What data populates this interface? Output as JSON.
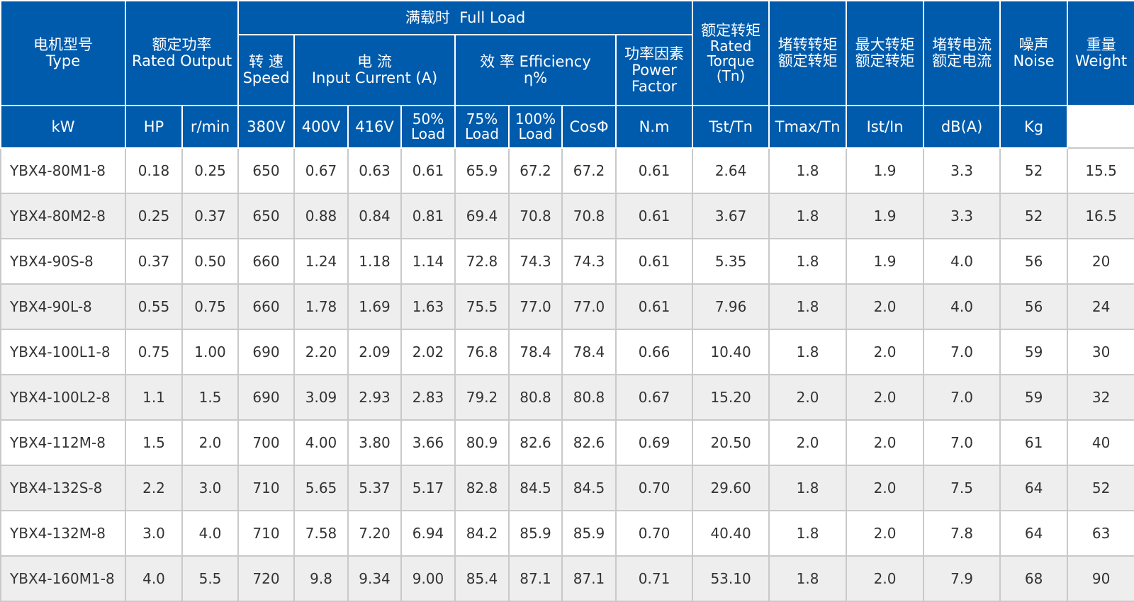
{
  "header": {
    "type": [
      "电机型号",
      "Type"
    ],
    "rated_output": [
      "额定功率",
      "Rated Output"
    ],
    "full_load": "满载时  Full Load",
    "speed": [
      "转 速",
      "Speed"
    ],
    "current": [
      "电 流",
      "Input Current (A)"
    ],
    "efficiency": [
      "效 率 Efficiency",
      "η%"
    ],
    "power_factor": [
      "功率因素",
      "Power",
      "Factor"
    ],
    "rated_torque": [
      "额定转矩",
      "Rated",
      "Torque",
      "(Tn)"
    ],
    "locked_torque": [
      "堵转转矩",
      "额定转矩"
    ],
    "max_torque": [
      "最大转矩",
      "额定转矩"
    ],
    "locked_current": [
      "堵转电流",
      "额定电流"
    ],
    "noise": [
      "噪声",
      "Noise"
    ],
    "weight": [
      "重量",
      "Weight"
    ],
    "units": {
      "kw": "kW",
      "hp": "HP",
      "rmin": "r/min",
      "v380": "380V",
      "v400": "400V",
      "v416": "416V",
      "load50": [
        "50%",
        "Load"
      ],
      "load75": [
        "75%",
        "Load"
      ],
      "load100": [
        "100%",
        "Load"
      ],
      "cos": "CosΦ",
      "nm": "N.m",
      "tst": "Tst/Tn",
      "tmax": "Tmax/Tn",
      "ist": "Ist/In",
      "db": "dB(A)",
      "kg": "Kg"
    }
  },
  "rows": [
    [
      "YBX4-80M1-8",
      "0.18",
      "0.25",
      "650",
      "0.67",
      "0.63",
      "0.61",
      "65.9",
      "67.2",
      "67.2",
      "0.61",
      "2.64",
      "1.8",
      "1.9",
      "3.3",
      "52",
      "15.5"
    ],
    [
      "YBX4-80M2-8",
      "0.25",
      "0.37",
      "650",
      "0.88",
      "0.84",
      "0.81",
      "69.4",
      "70.8",
      "70.8",
      "0.61",
      "3.67",
      "1.8",
      "1.9",
      "3.3",
      "52",
      "16.5"
    ],
    [
      "YBX4-90S-8",
      "0.37",
      "0.50",
      "660",
      "1.24",
      "1.18",
      "1.14",
      "72.8",
      "74.3",
      "74.3",
      "0.61",
      "5.35",
      "1.8",
      "1.9",
      "4.0",
      "56",
      "20"
    ],
    [
      "YBX4-90L-8",
      "0.55",
      "0.75",
      "660",
      "1.78",
      "1.69",
      "1.63",
      "75.5",
      "77.0",
      "77.0",
      "0.61",
      "7.96",
      "1.8",
      "2.0",
      "4.0",
      "56",
      "24"
    ],
    [
      "YBX4-100L1-8",
      "0.75",
      "1.00",
      "690",
      "2.20",
      "2.09",
      "2.02",
      "76.8",
      "78.4",
      "78.4",
      "0.66",
      "10.40",
      "1.8",
      "2.0",
      "7.0",
      "59",
      "30"
    ],
    [
      "YBX4-100L2-8",
      "1.1",
      "1.5",
      "690",
      "3.09",
      "2.93",
      "2.83",
      "79.2",
      "80.8",
      "80.8",
      "0.67",
      "15.20",
      "2.0",
      "2.0",
      "7.0",
      "59",
      "32"
    ],
    [
      "YBX4-112M-8",
      "1.5",
      "2.0",
      "700",
      "4.00",
      "3.80",
      "3.66",
      "80.9",
      "82.6",
      "82.6",
      "0.69",
      "20.50",
      "2.0",
      "2.0",
      "7.0",
      "61",
      "40"
    ],
    [
      "YBX4-132S-8",
      "2.2",
      "3.0",
      "710",
      "5.65",
      "5.37",
      "5.17",
      "82.8",
      "84.5",
      "84.5",
      "0.70",
      "29.60",
      "1.8",
      "2.0",
      "7.5",
      "64",
      "52"
    ],
    [
      "YBX4-132M-8",
      "3.0",
      "4.0",
      "710",
      "7.58",
      "7.20",
      "6.94",
      "84.2",
      "85.9",
      "85.9",
      "0.70",
      "40.40",
      "1.8",
      "2.0",
      "7.8",
      "64",
      "63"
    ],
    [
      "YBX4-160M1-8",
      "4.0",
      "5.5",
      "720",
      "9.8",
      "9.34",
      "9.00",
      "85.4",
      "87.1",
      "87.1",
      "0.71",
      "53.10",
      "1.8",
      "2.0",
      "7.9",
      "68",
      "90"
    ]
  ]
}
